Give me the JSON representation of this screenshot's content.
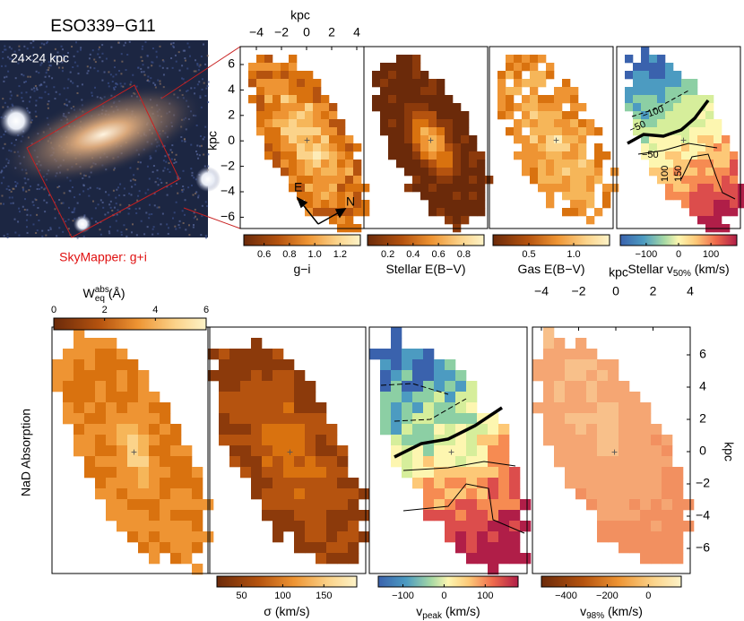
{
  "title": "ESO339−G11",
  "image_scale": "24×24 kpc",
  "image_caption": "SkyMapper: g+i",
  "top_row": {
    "axis_label_top": "kpc",
    "axis_label_left": "kpc",
    "xticks": [
      "−4",
      "−2",
      "0",
      "2",
      "4"
    ],
    "yticks": [
      "6",
      "4",
      "2",
      "0",
      "−2",
      "−4",
      "−6"
    ],
    "compass": [
      "E",
      "N"
    ],
    "contour_labels": [
      "−100",
      "−50",
      "−50",
      "100",
      "150"
    ],
    "panels": [
      {
        "label": "g−i",
        "ticks": [
          "0.6",
          "0.8",
          "1.0",
          "1.2"
        ]
      },
      {
        "label": "Stellar E(B−V)",
        "ticks": [
          "0.2",
          "0.4",
          "0.6",
          "0.8"
        ]
      },
      {
        "label": "Gas E(B−V)",
        "ticks": [
          "0.5",
          "1.0"
        ]
      },
      {
        "label": "Stellar v",
        "sub": "50%",
        "unit": " (km/s)",
        "ticks": [
          "−100",
          "0",
          "100"
        ]
      }
    ]
  },
  "bottom_row": {
    "row_label": "NaD Absorption",
    "axis_label_top": "kpc",
    "axis_label_right": "kpc",
    "xticks": [
      "−4",
      "−2",
      "0",
      "2",
      "4"
    ],
    "yticks": [
      "6",
      "4",
      "2",
      "0",
      "−2",
      "−4",
      "−6"
    ],
    "panels": [
      {
        "label": "W",
        "sup": "abs",
        "sub": "eq",
        "unit": " (Å)",
        "ticks": [
          "0",
          "2",
          "4",
          "6"
        ]
      },
      {
        "label": "σ (km/s)",
        "ticks": [
          "50",
          "100",
          "150"
        ]
      },
      {
        "label": "v",
        "sub": "peak",
        "unit": " (km/s)",
        "ticks": [
          "−100",
          "0",
          "100"
        ]
      },
      {
        "label": "v",
        "sub": "98%",
        "unit": " (km/s)",
        "ticks": [
          "−400",
          "−200",
          "0"
        ]
      }
    ]
  }
}
